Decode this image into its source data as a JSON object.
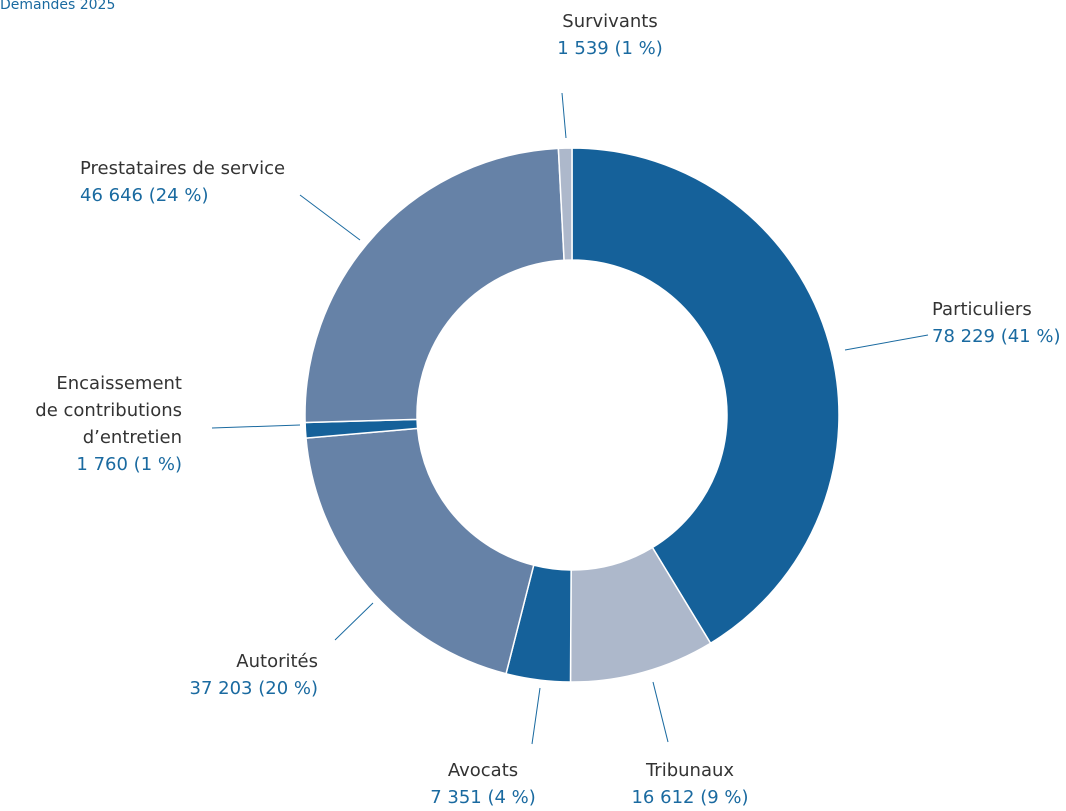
{
  "chart_data": {
    "type": "donut",
    "title": "Demandes 2025",
    "categories": [
      "Particuliers",
      "Tribunaux",
      "Avocats",
      "Autorités",
      "Encaissement\nde contributions\nd’entretien",
      "Prestataires de service",
      "Survivants"
    ],
    "values": [
      78229,
      16612,
      7351,
      37203,
      1760,
      46646,
      1539
    ],
    "value_labels": [
      "78 229 (41 %)",
      "16 612 (9 %)",
      "7 351 (4 %)",
      "37 203 (20 %)",
      "1 760 (1 %)",
      "46 646 (24 %)",
      "1 539 (1 %)"
    ],
    "colors": [
      "#15619a",
      "#adb8cb",
      "#15619a",
      "#6682a7",
      "#15619a",
      "#6682a7",
      "#adb8cb"
    ]
  }
}
